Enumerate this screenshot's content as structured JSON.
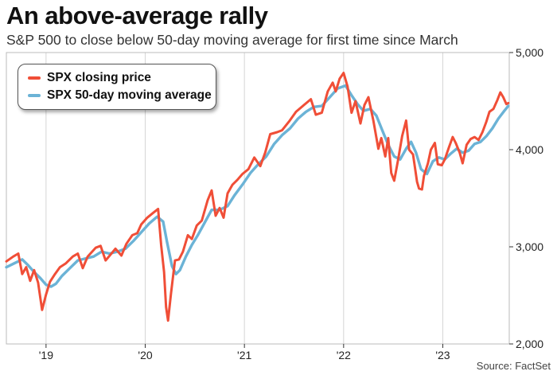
{
  "title": "An above-average rally",
  "subtitle": "S&P 500 to close below 50-day moving average for first time since March",
  "source": "Source: FactSet",
  "colors": {
    "price": "#f04e37",
    "ma": "#6bb3d6",
    "grid": "#d5d5d5",
    "axis": "#333333"
  },
  "legend": {
    "price_label": "SPX closing price",
    "ma_label": "SPX 50-day moving average",
    "placement": "top-left"
  },
  "chart_data": {
    "type": "line",
    "title": "An above-average rally",
    "subtitle": "S&P 500 to close below 50-day moving average for first time since March",
    "xlabel": "",
    "ylabel": "",
    "xlim": [
      2018.6,
      2023.67
    ],
    "ylim": [
      2000,
      5000
    ],
    "y_axis_side": "right",
    "grid": "vertical",
    "xticks": [
      {
        "label": "'19",
        "value": 2019
      },
      {
        "label": "'20",
        "value": 2020
      },
      {
        "label": "'21",
        "value": 2021
      },
      {
        "label": "'22",
        "value": 2022
      },
      {
        "label": "'23",
        "value": 2023
      }
    ],
    "yticks": [
      {
        "label": "2,000",
        "value": 2000
      },
      {
        "label": "3,000",
        "value": 3000
      },
      {
        "label": "4,000",
        "value": 4000
      },
      {
        "label": "5,000",
        "value": 5000
      }
    ],
    "series": [
      {
        "name": "SPX closing price",
        "color": "#f04e37",
        "points": [
          [
            2018.6,
            2850
          ],
          [
            2018.67,
            2900
          ],
          [
            2018.72,
            2930
          ],
          [
            2018.76,
            2720
          ],
          [
            2018.8,
            2790
          ],
          [
            2018.84,
            2650
          ],
          [
            2018.88,
            2760
          ],
          [
            2018.92,
            2630
          ],
          [
            2018.96,
            2350
          ],
          [
            2019.0,
            2510
          ],
          [
            2019.04,
            2640
          ],
          [
            2019.09,
            2720
          ],
          [
            2019.14,
            2790
          ],
          [
            2019.2,
            2830
          ],
          [
            2019.27,
            2900
          ],
          [
            2019.32,
            2930
          ],
          [
            2019.37,
            2780
          ],
          [
            2019.42,
            2900
          ],
          [
            2019.5,
            2990
          ],
          [
            2019.55,
            3010
          ],
          [
            2019.6,
            2860
          ],
          [
            2019.65,
            2920
          ],
          [
            2019.7,
            2980
          ],
          [
            2019.76,
            2910
          ],
          [
            2019.81,
            3030
          ],
          [
            2019.87,
            3120
          ],
          [
            2019.92,
            3140
          ],
          [
            2019.96,
            3230
          ],
          [
            2020.02,
            3300
          ],
          [
            2020.08,
            3350
          ],
          [
            2020.13,
            3390
          ],
          [
            2020.16,
            3020
          ],
          [
            2020.19,
            2740
          ],
          [
            2020.21,
            2380
          ],
          [
            2020.23,
            2240
          ],
          [
            2020.26,
            2520
          ],
          [
            2020.3,
            2860
          ],
          [
            2020.34,
            2870
          ],
          [
            2020.38,
            2950
          ],
          [
            2020.43,
            3120
          ],
          [
            2020.47,
            3080
          ],
          [
            2020.52,
            3220
          ],
          [
            2020.57,
            3270
          ],
          [
            2020.63,
            3480
          ],
          [
            2020.67,
            3580
          ],
          [
            2020.71,
            3320
          ],
          [
            2020.75,
            3400
          ],
          [
            2020.79,
            3300
          ],
          [
            2020.83,
            3550
          ],
          [
            2020.88,
            3640
          ],
          [
            2020.93,
            3690
          ],
          [
            2020.98,
            3750
          ],
          [
            2021.04,
            3800
          ],
          [
            2021.1,
            3920
          ],
          [
            2021.16,
            3830
          ],
          [
            2021.21,
            3970
          ],
          [
            2021.26,
            4160
          ],
          [
            2021.33,
            4180
          ],
          [
            2021.38,
            4200
          ],
          [
            2021.45,
            4290
          ],
          [
            2021.52,
            4390
          ],
          [
            2021.6,
            4460
          ],
          [
            2021.67,
            4520
          ],
          [
            2021.72,
            4360
          ],
          [
            2021.78,
            4380
          ],
          [
            2021.84,
            4600
          ],
          [
            2021.89,
            4690
          ],
          [
            2021.92,
            4600
          ],
          [
            2021.96,
            4730
          ],
          [
            2022.0,
            4790
          ],
          [
            2022.04,
            4650
          ],
          [
            2022.08,
            4380
          ],
          [
            2022.12,
            4500
          ],
          [
            2022.17,
            4270
          ],
          [
            2022.21,
            4460
          ],
          [
            2022.25,
            4540
          ],
          [
            2022.3,
            4300
          ],
          [
            2022.35,
            4010
          ],
          [
            2022.38,
            4120
          ],
          [
            2022.42,
            3930
          ],
          [
            2022.45,
            4120
          ],
          [
            2022.48,
            3760
          ],
          [
            2022.51,
            3680
          ],
          [
            2022.55,
            3900
          ],
          [
            2022.59,
            4140
          ],
          [
            2022.63,
            4300
          ],
          [
            2022.66,
            4000
          ],
          [
            2022.7,
            3950
          ],
          [
            2022.74,
            3670
          ],
          [
            2022.76,
            3600
          ],
          [
            2022.79,
            3590
          ],
          [
            2022.81,
            3730
          ],
          [
            2022.85,
            3860
          ],
          [
            2022.88,
            4000
          ],
          [
            2022.92,
            4070
          ],
          [
            2022.95,
            3850
          ],
          [
            2022.99,
            3840
          ],
          [
            2023.02,
            3900
          ],
          [
            2023.06,
            4020
          ],
          [
            2023.1,
            4130
          ],
          [
            2023.13,
            4070
          ],
          [
            2023.17,
            3970
          ],
          [
            2023.2,
            3860
          ],
          [
            2023.24,
            4050
          ],
          [
            2023.28,
            4110
          ],
          [
            2023.32,
            4130
          ],
          [
            2023.36,
            4100
          ],
          [
            2023.4,
            4180
          ],
          [
            2023.44,
            4290
          ],
          [
            2023.47,
            4390
          ],
          [
            2023.51,
            4420
          ],
          [
            2023.55,
            4510
          ],
          [
            2023.58,
            4590
          ],
          [
            2023.61,
            4540
          ],
          [
            2023.64,
            4470
          ],
          [
            2023.66,
            4480
          ]
        ]
      },
      {
        "name": "SPX 50-day moving average",
        "color": "#6bb3d6",
        "points": [
          [
            2018.6,
            2790
          ],
          [
            2018.68,
            2830
          ],
          [
            2018.76,
            2870
          ],
          [
            2018.82,
            2810
          ],
          [
            2018.88,
            2740
          ],
          [
            2018.94,
            2680
          ],
          [
            2019.0,
            2610
          ],
          [
            2019.05,
            2590
          ],
          [
            2019.1,
            2620
          ],
          [
            2019.16,
            2700
          ],
          [
            2019.24,
            2780
          ],
          [
            2019.32,
            2860
          ],
          [
            2019.4,
            2880
          ],
          [
            2019.48,
            2900
          ],
          [
            2019.56,
            2950
          ],
          [
            2019.64,
            2930
          ],
          [
            2019.72,
            2950
          ],
          [
            2019.8,
            2980
          ],
          [
            2019.88,
            3060
          ],
          [
            2019.96,
            3150
          ],
          [
            2020.04,
            3240
          ],
          [
            2020.12,
            3310
          ],
          [
            2020.18,
            3260
          ],
          [
            2020.22,
            3050
          ],
          [
            2020.27,
            2800
          ],
          [
            2020.31,
            2720
          ],
          [
            2020.35,
            2760
          ],
          [
            2020.41,
            2900
          ],
          [
            2020.47,
            3020
          ],
          [
            2020.53,
            3120
          ],
          [
            2020.6,
            3250
          ],
          [
            2020.67,
            3380
          ],
          [
            2020.75,
            3380
          ],
          [
            2020.83,
            3420
          ],
          [
            2020.9,
            3530
          ],
          [
            2020.98,
            3640
          ],
          [
            2021.06,
            3760
          ],
          [
            2021.14,
            3850
          ],
          [
            2021.22,
            3930
          ],
          [
            2021.3,
            4060
          ],
          [
            2021.38,
            4150
          ],
          [
            2021.46,
            4220
          ],
          [
            2021.54,
            4320
          ],
          [
            2021.62,
            4390
          ],
          [
            2021.7,
            4440
          ],
          [
            2021.78,
            4450
          ],
          [
            2021.86,
            4540
          ],
          [
            2021.94,
            4630
          ],
          [
            2022.02,
            4660
          ],
          [
            2022.08,
            4560
          ],
          [
            2022.14,
            4470
          ],
          [
            2022.2,
            4400
          ],
          [
            2022.27,
            4420
          ],
          [
            2022.33,
            4350
          ],
          [
            2022.39,
            4200
          ],
          [
            2022.45,
            4050
          ],
          [
            2022.51,
            3930
          ],
          [
            2022.57,
            3900
          ],
          [
            2022.63,
            4010
          ],
          [
            2022.68,
            4080
          ],
          [
            2022.73,
            3970
          ],
          [
            2022.78,
            3800
          ],
          [
            2022.84,
            3750
          ],
          [
            2022.9,
            3880
          ],
          [
            2022.96,
            3920
          ],
          [
            2023.02,
            3900
          ],
          [
            2023.08,
            3960
          ],
          [
            2023.14,
            4010
          ],
          [
            2023.2,
            3970
          ],
          [
            2023.26,
            3990
          ],
          [
            2023.32,
            4060
          ],
          [
            2023.38,
            4080
          ],
          [
            2023.44,
            4140
          ],
          [
            2023.5,
            4220
          ],
          [
            2023.56,
            4320
          ],
          [
            2023.62,
            4400
          ],
          [
            2023.66,
            4450
          ]
        ]
      }
    ]
  }
}
